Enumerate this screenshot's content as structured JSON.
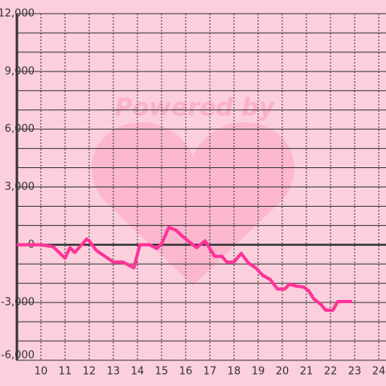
{
  "chart_data": {
    "type": "line",
    "watermark": "Powered by",
    "x": [
      9.0,
      10.0,
      10.5,
      11.0,
      11.2,
      11.4,
      11.9,
      12.0,
      12.3,
      13.0,
      13.4,
      13.85,
      14.1,
      14.5,
      14.8,
      15.0,
      15.3,
      15.6,
      15.9,
      16.2,
      16.45,
      16.8,
      17.2,
      17.5,
      17.7,
      18.0,
      18.3,
      18.6,
      18.9,
      19.2,
      19.5,
      19.8,
      20.1,
      20.3,
      20.6,
      20.9,
      21.1,
      21.3,
      21.6,
      21.8,
      22.1,
      22.3,
      22.9
    ],
    "series": [
      {
        "color": "#ff3399",
        "values": [
          0,
          0,
          -100,
          -700,
          -150,
          -400,
          300,
          200,
          -300,
          -900,
          -900,
          -1200,
          0,
          0,
          -200,
          50,
          900,
          750,
          400,
          100,
          -150,
          200,
          -600,
          -600,
          -900,
          -900,
          -450,
          -950,
          -1200,
          -1600,
          -1800,
          -2300,
          -2300,
          -2050,
          -2150,
          -2200,
          -2400,
          -2800,
          -3100,
          -3400,
          -3400,
          -2950,
          -2950
        ]
      }
    ],
    "xlim": [
      8.97,
      24.3
    ],
    "xticks": [
      10,
      11,
      12,
      13,
      14,
      15,
      16,
      17,
      18,
      19,
      20,
      21,
      22,
      23,
      24
    ],
    "ylim": [
      -6000,
      12000
    ],
    "yticks": [
      {
        "value": 12000,
        "label": "12,000"
      },
      {
        "value": 9000,
        "label": "9,000"
      },
      {
        "value": 6000,
        "label": "6,000"
      },
      {
        "value": 3000,
        "label": "3,000"
      },
      0,
      {
        "value": -3000,
        "label": "-3,000"
      },
      {
        "value": -6000,
        "label": "-6,000"
      }
    ],
    "minor_yticks": [
      11000,
      10000,
      8000,
      7000,
      5000,
      4000,
      2000,
      1000,
      -1000,
      -2000,
      -4000,
      -5000
    ],
    "grid": true
  }
}
